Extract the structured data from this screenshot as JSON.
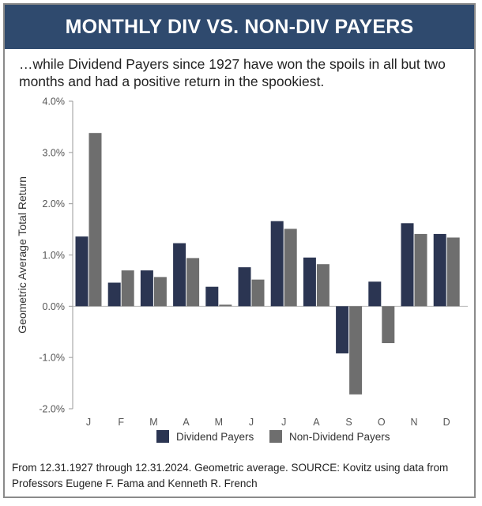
{
  "header": {
    "title": "MONTHLY DIV VS. NON-DIV PAYERS"
  },
  "subtitle": "…while Dividend Payers since 1927 have won the spoils in all but two months and had a positive return in the spookiest.",
  "footer": "From 12.31.1927 through 12.31.2024. Geometric average. SOURCE: Kovitz using data from Professors Eugene F. Fama and Kenneth R. French",
  "colors": {
    "header_bg": "#2f4a6e",
    "dividend": "#2b3552",
    "non_dividend": "#6e6e6e",
    "axis": "#9a9a9a",
    "text": "#555555"
  },
  "chart_data": {
    "type": "bar",
    "title": "MONTHLY DIV VS. NON-DIV PAYERS",
    "xlabel": "",
    "ylabel": "Geometric Average Total Return",
    "categories": [
      "J",
      "F",
      "M",
      "A",
      "M",
      "J",
      "J",
      "A",
      "S",
      "O",
      "N",
      "D"
    ],
    "series": [
      {
        "name": "Dividend Payers",
        "values": [
          1.36,
          0.46,
          0.7,
          1.23,
          0.38,
          0.76,
          1.66,
          0.95,
          -0.92,
          0.48,
          1.62,
          1.41
        ]
      },
      {
        "name": "Non-Dividend Payers",
        "values": [
          3.38,
          0.7,
          0.57,
          0.94,
          0.03,
          0.52,
          1.51,
          0.82,
          -1.72,
          -0.72,
          1.41,
          1.34
        ]
      }
    ],
    "ylim": [
      -2.0,
      4.0
    ],
    "yticks": [
      -2.0,
      -1.0,
      0.0,
      1.0,
      2.0,
      3.0,
      4.0
    ],
    "ytick_labels": [
      "-2.0%",
      "-1.0%",
      "0.0%",
      "1.0%",
      "2.0%",
      "3.0%",
      "4.0%"
    ],
    "grid": false,
    "legend_position": "bottom"
  }
}
